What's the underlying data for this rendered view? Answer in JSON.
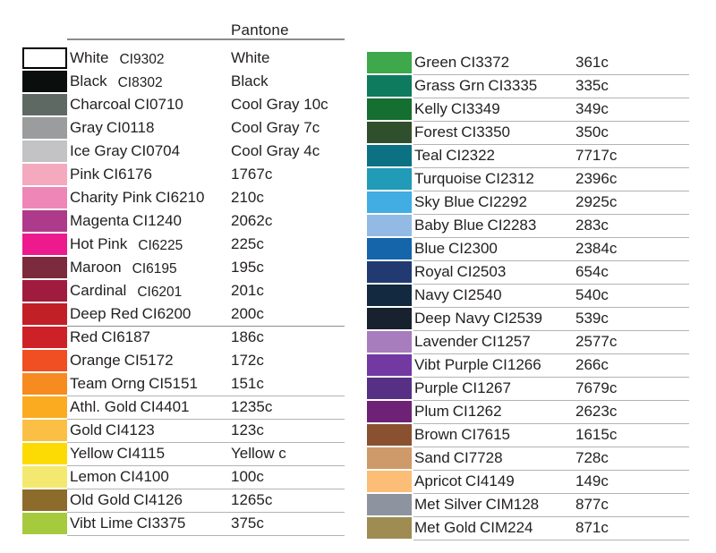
{
  "chart_data": {
    "type": "table",
    "title": "Pantone",
    "columns_meta": [
      "color swatch",
      "color name + CI code",
      "Pantone value"
    ],
    "rule_colors": {
      "header_rule": "#8c8c8c",
      "row_rule": "#b3b3b3",
      "text": "#231f20"
    },
    "columns": [
      {
        "id": "left",
        "rows": [
          {
            "name": "White",
            "code": "CI9302",
            "pantone": "White",
            "swatch": "#ffffff",
            "swatch_border": true,
            "code_gap": true
          },
          {
            "name": "Black",
            "code": "CI8302",
            "pantone": "Black",
            "swatch": "#0a0f0d",
            "code_gap": true
          },
          {
            "name": "Charcoal",
            "code": "CI0710",
            "pantone": "Cool Gray 10c",
            "swatch": "#5f6964"
          },
          {
            "name": "Gray",
            "code": "CI0118",
            "pantone": "Cool Gray 7c",
            "swatch": "#9b9c9e"
          },
          {
            "name": "Ice Gray",
            "code": "CI0704",
            "pantone": "Cool Gray 4c",
            "swatch": "#c3c3c5"
          },
          {
            "name": "Pink",
            "code": "CI6176",
            "pantone": "1767c",
            "swatch": "#f5a9be"
          },
          {
            "name": "Charity Pink",
            "code": "CI6210",
            "pantone": "210c",
            "swatch": "#ee86b7"
          },
          {
            "name": "Magenta",
            "code": "CI1240",
            "pantone": "2062c",
            "swatch": "#ae3a8b"
          },
          {
            "name": "Hot Pink",
            "code": "CI6225",
            "pantone": "225c",
            "swatch": "#ec1a8d",
            "code_gap": true
          },
          {
            "name": "Maroon",
            "code": "CI6195",
            "pantone": "195c",
            "swatch": "#7c2b3d",
            "code_gap": true
          },
          {
            "name": "Cardinal",
            "code": "CI6201",
            "pantone": "201c",
            "swatch": "#a01c3e",
            "code_gap": true
          },
          {
            "name": "Deep Red",
            "code": "CI6200",
            "pantone": "200c",
            "swatch": "#c02026",
            "underline": "dark"
          },
          {
            "name": "Red",
            "code": "CI6187",
            "pantone": "186c",
            "swatch": "#cd2127"
          },
          {
            "name": "Orange",
            "code": "CI5172",
            "pantone": "172c",
            "swatch": "#f04e23"
          },
          {
            "name": "Team Orng",
            "code": "CI5151",
            "pantone": "151c",
            "swatch": "#f68b1f",
            "underline": true
          },
          {
            "name": "Athl. Gold",
            "code": "CI4401",
            "pantone": "1235c",
            "swatch": "#fbab20",
            "underline": true
          },
          {
            "name": "Gold",
            "code": "CI4123",
            "pantone": "123c",
            "swatch": "#fcbf45",
            "underline": true
          },
          {
            "name": "Yellow",
            "code": "CI4115",
            "pantone": "Yellow c",
            "swatch": "#fcdb05",
            "underline": true
          },
          {
            "name": "Lemon",
            "code": "CI4100",
            "pantone": "100c",
            "swatch": "#f4e970",
            "underline": true
          },
          {
            "name": "Old Gold",
            "code": "CI4126",
            "pantone": "1265c",
            "swatch": "#8d6b2a",
            "underline": true
          },
          {
            "name": "Vibt Lime",
            "code": "CI3375",
            "pantone": "375c",
            "swatch": "#a5ca3e",
            "underline": true
          }
        ]
      },
      {
        "id": "right",
        "rows": [
          {
            "name": "Green",
            "code": "CI3372",
            "pantone": "361c",
            "swatch": "#3da94b",
            "underline": true
          },
          {
            "name": "Grass Grn",
            "code": "CI3335",
            "pantone": "335c",
            "swatch": "#0e7b5f",
            "underline": true
          },
          {
            "name": "Kelly",
            "code": "CI3349",
            "pantone": "349c",
            "swatch": "#156f30",
            "underline": true
          },
          {
            "name": "Forest",
            "code": "CI3350",
            "pantone": "350c",
            "swatch": "#30502d",
            "underline": true
          },
          {
            "name": "Teal",
            "code": "CI2322",
            "pantone": "7717c",
            "swatch": "#0d7184",
            "underline": true
          },
          {
            "name": "Turquoise",
            "code": "CI2312",
            "pantone": "2396c",
            "swatch": "#219bb8",
            "underline": true
          },
          {
            "name": "Sky Blue",
            "code": "CI2292",
            "pantone": "2925c",
            "swatch": "#41ade3",
            "underline": true
          },
          {
            "name": "Baby Blue",
            "code": "CI2283",
            "pantone": "283c",
            "swatch": "#93bae5",
            "underline": true
          },
          {
            "name": "Blue",
            "code": "CI2300",
            "pantone": "2384c",
            "swatch": "#1565aa",
            "underline": true
          },
          {
            "name": "Royal",
            "code": "CI2503",
            "pantone": "654c",
            "swatch": "#213a72",
            "underline": true
          },
          {
            "name": "Navy",
            "code": "CI2540",
            "pantone": "540c",
            "swatch": "#13293f",
            "underline": true
          },
          {
            "name": "Deep Navy",
            "code": "CI2539",
            "pantone": "539c",
            "swatch": "#17222e",
            "underline": true
          },
          {
            "name": "Lavender",
            "code": "CI1257",
            "pantone": "2577c",
            "swatch": "#a87dbe",
            "underline": true
          },
          {
            "name": "Vibt Purple",
            "code": "CI1266",
            "pantone": "266c",
            "swatch": "#7339a3",
            "underline": true
          },
          {
            "name": "Purple",
            "code": "CI1267",
            "pantone": "7679c",
            "swatch": "#573085",
            "underline": true
          },
          {
            "name": "Plum",
            "code": "CI1262",
            "pantone": "2623c",
            "swatch": "#6e2276",
            "underline": true
          },
          {
            "name": "Brown",
            "code": "CI7615",
            "pantone": "1615c",
            "swatch": "#8a5130",
            "underline": true
          },
          {
            "name": "Sand",
            "code": "CI7728",
            "pantone": "728c",
            "swatch": "#cf9a69",
            "underline": true
          },
          {
            "name": "Apricot",
            "code": "CI4149",
            "pantone": "149c",
            "swatch": "#fcbe77",
            "underline": true
          },
          {
            "name": "Met Silver",
            "code": "CIM128",
            "pantone": "877c",
            "swatch": "#8d94a0",
            "underline": true
          },
          {
            "name": "Met Gold",
            "code": "CIM224",
            "pantone": "871c",
            "swatch": "#9e8c53",
            "underline": true
          }
        ]
      }
    ]
  }
}
